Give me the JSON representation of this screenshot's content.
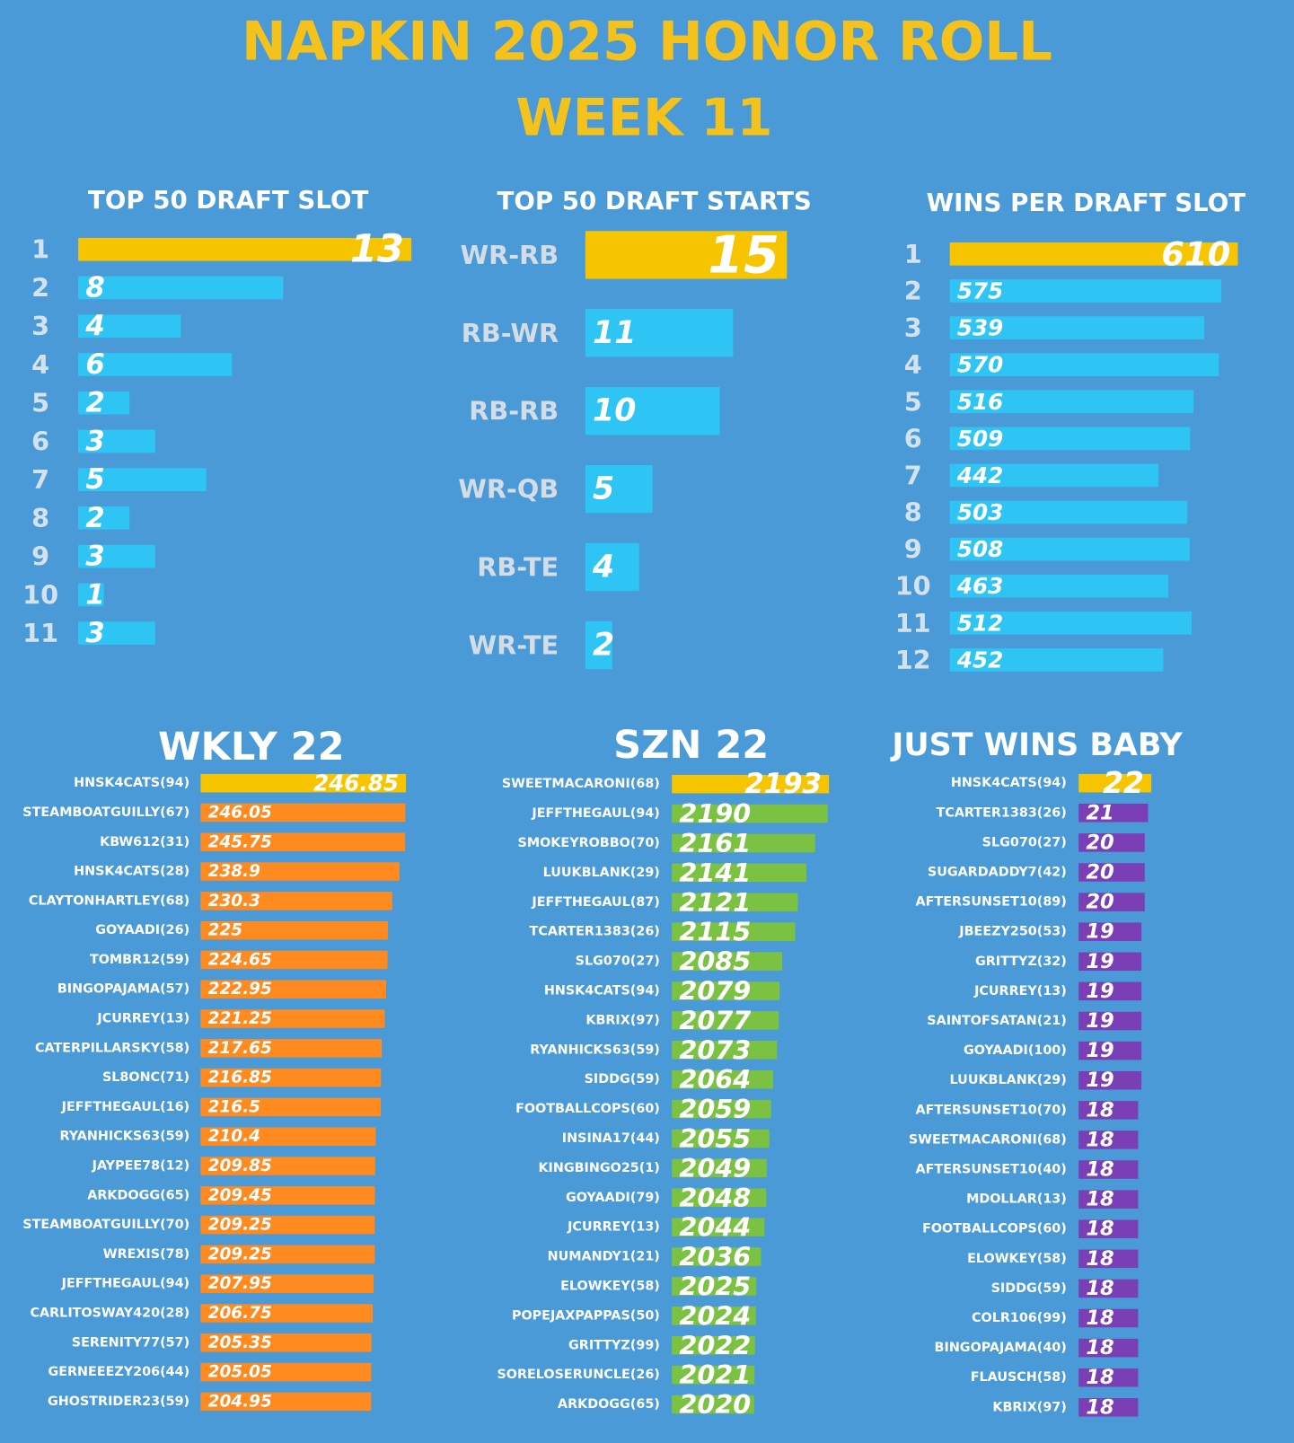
{
  "header": {
    "title": "NAPKIN 2025 HONOR ROLL",
    "subtitle": "WEEK 11"
  },
  "chart_data": [
    {
      "type": "bar",
      "orientation": "horizontal",
      "title": "TOP 50 DRAFT SLOT",
      "categories": [
        "1",
        "2",
        "3",
        "4",
        "5",
        "6",
        "7",
        "8",
        "9",
        "10",
        "11"
      ],
      "values": [
        13,
        8,
        4,
        6,
        2,
        3,
        5,
        2,
        3,
        1,
        3
      ],
      "color": "#2ec5f5",
      "highlight_color": "#f7c400",
      "xlim": [
        0,
        13
      ]
    },
    {
      "type": "bar",
      "orientation": "horizontal",
      "title": "TOP 50 DRAFT STARTS",
      "categories": [
        "WR-RB",
        "RB-WR",
        "RB-RB",
        "WR-QB",
        "RB-TE",
        "WR-TE"
      ],
      "values": [
        15,
        11,
        10,
        5,
        4,
        2
      ],
      "color": "#2ec5f5",
      "highlight_color": "#f7c400",
      "xlim": [
        0,
        15
      ]
    },
    {
      "type": "bar",
      "orientation": "horizontal",
      "title": "WINS PER DRAFT SLOT",
      "categories": [
        "1",
        "2",
        "3",
        "4",
        "5",
        "6",
        "7",
        "8",
        "9",
        "10",
        "11",
        "12"
      ],
      "values": [
        610,
        575,
        539,
        570,
        516,
        509,
        442,
        503,
        508,
        463,
        512,
        452
      ],
      "color": "#2ec5f5",
      "highlight_color": "#f7c400",
      "xlim": [
        0,
        610
      ]
    },
    {
      "type": "bar",
      "orientation": "horizontal",
      "title": "WKLY 22",
      "categories": [
        "HNSK4CATS(94)",
        "STEAMBOATGUILLY(67)",
        "KBW612(31)",
        "HNSK4CATS(28)",
        "CLAYTONHARTLEY(68)",
        "GOYAADI(26)",
        "TOMBR12(59)",
        "BINGOPAJAMA(57)",
        "JCURREY(13)",
        "CATERPILLARSKY(58)",
        "SL8ONC(71)",
        "JEFFTHEGAUL(16)",
        "RYANHICKS63(59)",
        "JAYPEE78(12)",
        "ARKDOGG(65)",
        "STEAMBOATGUILLY(70)",
        "WREXIS(78)",
        "JEFFTHEGAUL(94)",
        "CARLITOSWAY420(28)",
        "SERENITY77(57)",
        "GERNEEEZY206(44)",
        "GHOSTRIDER23(59)"
      ],
      "values": [
        246.85,
        246.05,
        245.75,
        238.9,
        230.3,
        225,
        224.65,
        222.95,
        221.25,
        217.65,
        216.85,
        216.5,
        210.4,
        209.85,
        209.45,
        209.25,
        209.25,
        207.95,
        206.75,
        205.35,
        205.05,
        204.95
      ],
      "color": "#ff8a1f",
      "highlight_color": "#f7c400",
      "xlim": [
        0,
        250
      ]
    },
    {
      "type": "bar",
      "orientation": "horizontal",
      "title": "SZN 22",
      "categories": [
        "SWEETMACARONI(68)",
        "JEFFTHEGAUL(94)",
        "SMOKEYROBBO(70)",
        "LUUKBLANK(29)",
        "JEFFTHEGAUL(87)",
        "TCARTER1383(26)",
        "SLG070(27)",
        "HNSK4CATS(94)",
        "KBRIX(97)",
        "RYANHICKS63(59)",
        "SIDDG(59)",
        "FOOTBALLCOPS(60)",
        "INSINA17(44)",
        "KINGBINGO25(1)",
        "GOYAADI(79)",
        "JCURREY(13)",
        "NUMANDY1(21)",
        "ELOWKEY(58)",
        "POPEJAXPAPPAS(50)",
        "GRITTYZ(99)",
        "SORELOSERUNCLE(26)",
        "ARKDOGG(65)"
      ],
      "values": [
        2193,
        2190,
        2161,
        2141,
        2121,
        2115,
        2085,
        2079,
        2077,
        2073,
        2064,
        2059,
        2055,
        2049,
        2048,
        2044,
        2036,
        2025,
        2024,
        2022,
        2021,
        2020
      ],
      "color": "#7cc242",
      "highlight_color": "#f7c400",
      "xlim": [
        1830,
        2200
      ]
    },
    {
      "type": "bar",
      "orientation": "horizontal",
      "title": "JUST WINS BABY",
      "categories": [
        "HNSK4CATS(94)",
        "TCARTER1383(26)",
        "SLG070(27)",
        "SUGARDADDY7(42)",
        "AFTERSUNSET10(89)",
        "JBEEZY250(53)",
        "GRITTYZ(32)",
        "JCURREY(13)",
        "SAINTOFSATAN(21)",
        "GOYAADI(100)",
        "LUUKBLANK(29)",
        "AFTERSUNSET10(70)",
        "SWEETMACARONI(68)",
        "AFTERSUNSET10(40)",
        "MDOLLAR(13)",
        "FOOTBALLCOPS(60)",
        "ELOWKEY(58)",
        "SIDDG(59)",
        "COLR106(99)",
        "BINGOPAJAMA(40)",
        "FLAUSCH(58)",
        "KBRIX(97)"
      ],
      "values": [
        22,
        21,
        20,
        20,
        20,
        19,
        19,
        19,
        19,
        19,
        19,
        18,
        18,
        18,
        18,
        18,
        18,
        18,
        18,
        18,
        18,
        18
      ],
      "color": "#7a3fb5",
      "highlight_color": "#f7c400",
      "xlim": [
        0,
        22
      ]
    }
  ]
}
